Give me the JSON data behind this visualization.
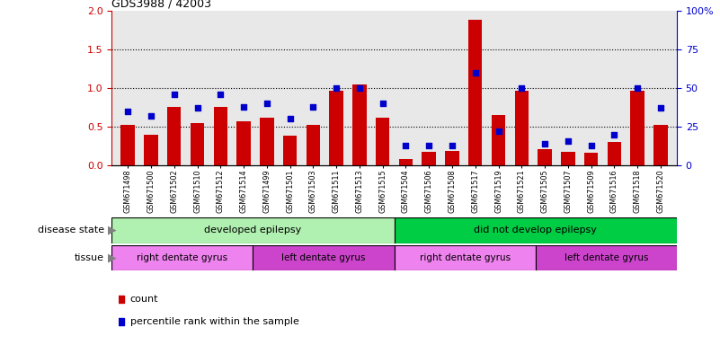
{
  "title": "GDS3988 / 42003",
  "samples": [
    "GSM671498",
    "GSM671500",
    "GSM671502",
    "GSM671510",
    "GSM671512",
    "GSM671514",
    "GSM671499",
    "GSM671501",
    "GSM671503",
    "GSM671511",
    "GSM671513",
    "GSM671515",
    "GSM671504",
    "GSM671506",
    "GSM671508",
    "GSM671517",
    "GSM671519",
    "GSM671521",
    "GSM671505",
    "GSM671507",
    "GSM671509",
    "GSM671516",
    "GSM671518",
    "GSM671520"
  ],
  "counts": [
    0.52,
    0.4,
    0.76,
    0.55,
    0.76,
    0.57,
    0.62,
    0.38,
    0.53,
    0.97,
    1.04,
    0.62,
    0.09,
    0.18,
    0.19,
    1.88,
    0.65,
    0.97,
    0.21,
    0.18,
    0.17,
    0.3,
    0.97,
    0.53
  ],
  "percentiles": [
    35,
    32,
    46,
    37,
    46,
    38,
    40,
    30,
    38,
    50,
    50,
    40,
    13,
    13,
    13,
    60,
    22,
    50,
    14,
    16,
    13,
    20,
    50,
    37
  ],
  "count_color": "#cc0000",
  "percentile_color": "#0000cc",
  "ylim_left": [
    0,
    2
  ],
  "ylim_right": [
    0,
    100
  ],
  "yticks_left": [
    0,
    0.5,
    1.0,
    1.5,
    2.0
  ],
  "yticks_right": [
    0,
    25,
    50,
    75,
    100
  ],
  "ytick_labels_right": [
    "0",
    "25",
    "50",
    "75",
    "100%"
  ],
  "hlines": [
    0.5,
    1.0,
    1.5
  ],
  "disease_state_groups": [
    {
      "label": "developed epilepsy",
      "start": 0,
      "end": 12,
      "color": "#b0f0b0"
    },
    {
      "label": "did not develop epilepsy",
      "start": 12,
      "end": 24,
      "color": "#00cc44"
    }
  ],
  "tissue_groups": [
    {
      "label": "right dentate gyrus",
      "start": 0,
      "end": 6,
      "color": "#ee82ee"
    },
    {
      "label": "left dentate gyrus",
      "start": 6,
      "end": 12,
      "color": "#cc44cc"
    },
    {
      "label": "right dentate gyrus",
      "start": 12,
      "end": 18,
      "color": "#ee82ee"
    },
    {
      "label": "left dentate gyrus",
      "start": 18,
      "end": 24,
      "color": "#cc44cc"
    }
  ],
  "legend_count_label": "count",
  "legend_pct_label": "percentile rank within the sample",
  "bar_width": 0.6,
  "background_color": "#ffffff",
  "plot_bg": "#e8e8e8"
}
